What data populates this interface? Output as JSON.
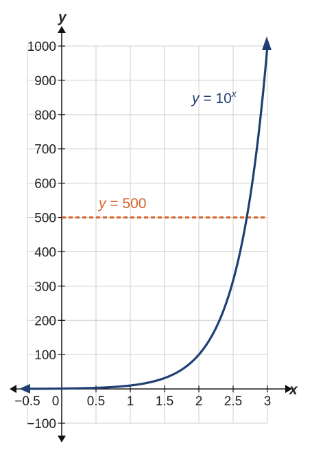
{
  "chart_data": {
    "type": "line",
    "xlabel": "y",
    "ylabel": "y",
    "axis_x_name": "x",
    "axis_y_name": "y",
    "xlim": [
      -0.5,
      3
    ],
    "ylim": [
      -100,
      1000
    ],
    "x_ticks": [
      -0.5,
      0,
      0.5,
      1,
      1.5,
      2,
      2.5,
      3
    ],
    "x_tick_labels": [
      "−0.5",
      "0",
      "0.5",
      "1",
      "1.5",
      "2",
      "2.5",
      "3"
    ],
    "y_ticks": [
      -100,
      100,
      200,
      300,
      400,
      500,
      600,
      700,
      800,
      900,
      1000
    ],
    "y_tick_labels": [
      "−100",
      "100",
      "200",
      "300",
      "400",
      "500",
      "600",
      "700",
      "800",
      "900",
      "1000"
    ],
    "grid": true,
    "series": [
      {
        "name": "y = 10^x",
        "label_prefix": "y",
        "label_mid": " = 10",
        "label_sup": "x",
        "color": "#1f3f73",
        "function": "10^x",
        "x": [
          -0.5,
          0,
          0.5,
          1,
          1.5,
          2,
          2.5,
          3
        ],
        "y": [
          0.316,
          1,
          3.16,
          10,
          31.6,
          100,
          316.2,
          1000
        ]
      },
      {
        "name": "y = 500",
        "label_prefix": "y",
        "label_mid": " = 500",
        "color": "#d9622b",
        "style": "dashed",
        "x": [
          0,
          3
        ],
        "y": [
          500,
          500
        ]
      }
    ]
  }
}
